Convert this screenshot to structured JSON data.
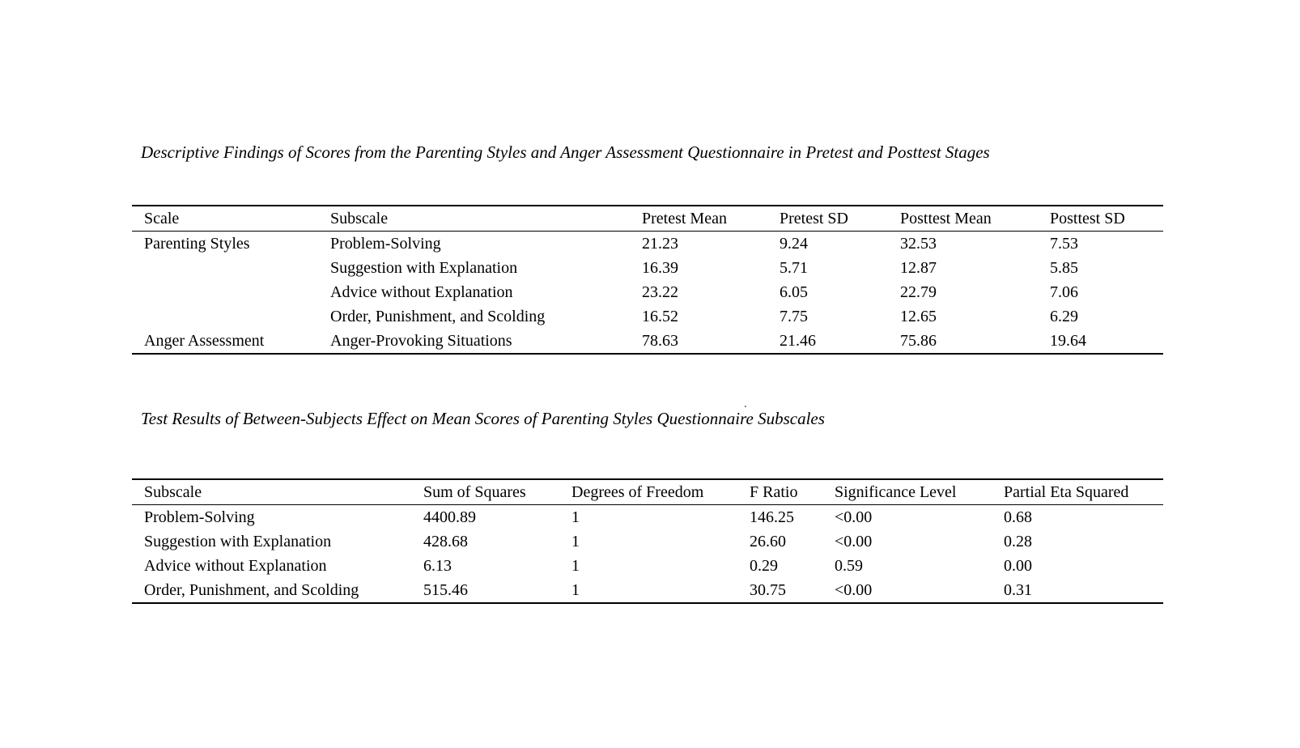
{
  "page": {
    "background_color": "#ffffff",
    "text_color": "#000000"
  },
  "stray_mark": ".",
  "table1": {
    "title": "Descriptive Findings of Scores from the Parenting Styles and Anger Assessment Questionnaire in Pretest and Posttest Stages",
    "columns": [
      "Scale",
      "Subscale",
      "Pretest Mean",
      "Pretest SD",
      "Posttest Mean",
      "Posttest SD"
    ],
    "rows": [
      [
        "Parenting Styles",
        "Problem-Solving",
        "21.23",
        "9.24",
        "32.53",
        "7.53"
      ],
      [
        "",
        "Suggestion with Explanation",
        "16.39",
        "5.71",
        "12.87",
        "5.85"
      ],
      [
        "",
        "Advice without Explanation",
        "23.22",
        "6.05",
        "22.79",
        "7.06"
      ],
      [
        "",
        "Order, Punishment, and Scolding",
        "16.52",
        "7.75",
        "12.65",
        "6.29"
      ],
      [
        "Anger Assessment",
        "Anger-Provoking Situations",
        "78.63",
        "21.46",
        "75.86",
        "19.64"
      ]
    ]
  },
  "table2": {
    "title": "Test Results of Between-Subjects Effect on Mean Scores of Parenting Styles Questionnaire Subscales",
    "columns": [
      "Subscale",
      "Sum of Squares",
      "Degrees of Freedom",
      "F Ratio",
      "Significance Level",
      "Partial Eta Squared"
    ],
    "rows": [
      [
        "Problem-Solving",
        "4400.89",
        "1",
        "146.25",
        "<0.00",
        "0.68"
      ],
      [
        "Suggestion with Explanation",
        "428.68",
        "1",
        "26.60",
        "<0.00",
        "0.28"
      ],
      [
        "Advice without Explanation",
        "6.13",
        "1",
        "0.29",
        "0.59",
        "0.00"
      ],
      [
        "Order, Punishment, and Scolding",
        "515.46",
        "1",
        "30.75",
        "<0.00",
        "0.31"
      ]
    ]
  },
  "chart_data": [
    {
      "type": "table",
      "title": "Descriptive Findings of Scores from the Parenting Styles and Anger Assessment Questionnaire in Pretest and Posttest Stages",
      "columns": [
        "Scale",
        "Subscale",
        "Pretest Mean",
        "Pretest SD",
        "Posttest Mean",
        "Posttest SD"
      ],
      "rows": [
        [
          "Parenting Styles",
          "Problem-Solving",
          21.23,
          9.24,
          32.53,
          7.53
        ],
        [
          "",
          "Suggestion with Explanation",
          16.39,
          5.71,
          12.87,
          5.85
        ],
        [
          "",
          "Advice without Explanation",
          23.22,
          6.05,
          22.79,
          7.06
        ],
        [
          "",
          "Order, Punishment, and Scolding",
          16.52,
          7.75,
          12.65,
          6.29
        ],
        [
          "Anger Assessment",
          "Anger-Provoking Situations",
          78.63,
          21.46,
          75.86,
          19.64
        ]
      ]
    },
    {
      "type": "table",
      "title": "Test Results of Between-Subjects Effect on Mean Scores of Parenting Styles Questionnaire Subscales",
      "columns": [
        "Subscale",
        "Sum of Squares",
        "Degrees of Freedom",
        "F Ratio",
        "Significance Level",
        "Partial Eta Squared"
      ],
      "rows": [
        [
          "Problem-Solving",
          4400.89,
          1,
          146.25,
          "<0.00",
          0.68
        ],
        [
          "Suggestion with Explanation",
          428.68,
          1,
          26.6,
          "<0.00",
          0.28
        ],
        [
          "Advice without Explanation",
          6.13,
          1,
          0.29,
          "0.59",
          0.0
        ],
        [
          "Order, Punishment, and Scolding",
          515.46,
          1,
          30.75,
          "<0.00",
          0.31
        ]
      ]
    }
  ]
}
